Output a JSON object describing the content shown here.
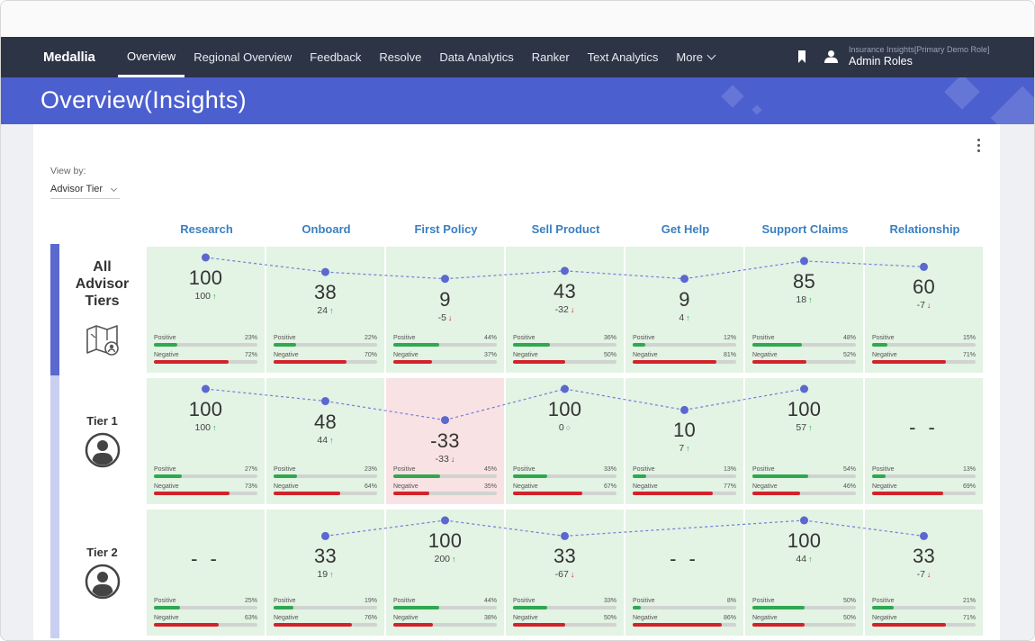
{
  "nav": {
    "logo": "Medallia",
    "tabs": [
      {
        "label": "Overview",
        "active": true
      },
      {
        "label": "Regional Overview"
      },
      {
        "label": "Feedback"
      },
      {
        "label": "Resolve"
      },
      {
        "label": "Data Analytics"
      },
      {
        "label": "Ranker"
      },
      {
        "label": "Text Analytics"
      },
      {
        "label": "More"
      }
    ],
    "role_subtitle": "Insurance Insights[Primary Demo Role]",
    "role_name": "Admin Roles",
    "icons": [
      "bookmark-icon",
      "user-icon",
      "chevron-down-icon"
    ]
  },
  "banner": {
    "title": "Overview(Insights)"
  },
  "view_by": {
    "label": "View by:",
    "value": "Advisor Tier"
  },
  "columns": [
    "Research",
    "Onboard",
    "First Policy",
    "Sell Product",
    "Get Help",
    "Support Claims",
    "Relationship"
  ],
  "metric_labels": {
    "positive": "Positive",
    "negative": "Negative"
  },
  "empty_score": "- -",
  "colors": {
    "accent": "#4c5fcf",
    "nav": "#2c3446",
    "positive": "#2fa84f",
    "negative": "#d2232a",
    "cell_bg": "#e3f3e4",
    "cell_bg_negative": "#f9e2e3",
    "column_header": "#3a7fc1"
  },
  "rows": [
    {
      "label": "All Advisor Tiers",
      "label_lines": [
        "All",
        "Advisor",
        "Tiers"
      ],
      "icon": "map-person-icon",
      "cells": [
        {
          "score": "100",
          "delta": "100",
          "dir": "up",
          "positive": 23,
          "negative": 72
        },
        {
          "score": "38",
          "delta": "24",
          "dir": "up",
          "positive": 22,
          "negative": 70
        },
        {
          "score": "9",
          "delta": "-5",
          "dir": "down",
          "positive": 44,
          "negative": 37
        },
        {
          "score": "43",
          "delta": "-32",
          "dir": "down",
          "positive": 36,
          "negative": 50
        },
        {
          "score": "9",
          "delta": "4",
          "dir": "up",
          "positive": 12,
          "negative": 81
        },
        {
          "score": "85",
          "delta": "18",
          "dir": "up",
          "positive": 48,
          "negative": 52
        },
        {
          "score": "60",
          "delta": "-7",
          "dir": "down",
          "positive": 15,
          "negative": 71
        }
      ]
    },
    {
      "label": "Tier 1",
      "label_lines": [
        "Tier 1"
      ],
      "icon": "avatar-icon",
      "cells": [
        {
          "score": "100",
          "delta": "100",
          "dir": "up",
          "positive": 27,
          "negative": 73
        },
        {
          "score": "48",
          "delta": "44",
          "dir": "up",
          "positive": 23,
          "negative": 64
        },
        {
          "score": "-33",
          "delta": "-33",
          "dir": "down",
          "positive": 45,
          "negative": 35,
          "highlight": true
        },
        {
          "score": "100",
          "delta": "0",
          "dir": "none",
          "positive": 33,
          "negative": 67
        },
        {
          "score": "10",
          "delta": "7",
          "dir": "up",
          "positive": 13,
          "negative": 77
        },
        {
          "score": "100",
          "delta": "57",
          "dir": "up",
          "positive": 54,
          "negative": 46
        },
        {
          "score": null,
          "delta": null,
          "dir": null,
          "positive": 13,
          "negative": 69
        }
      ]
    },
    {
      "label": "Tier 2",
      "label_lines": [
        "Tier 2"
      ],
      "icon": "avatar-icon",
      "cells": [
        {
          "score": null,
          "delta": null,
          "dir": null,
          "positive": 25,
          "negative": 63
        },
        {
          "score": "33",
          "delta": "19",
          "dir": "up",
          "positive": 19,
          "negative": 76
        },
        {
          "score": "100",
          "delta": "200",
          "dir": "up",
          "positive": 44,
          "negative": 38
        },
        {
          "score": "33",
          "delta": "-67",
          "dir": "down",
          "positive": 33,
          "negative": 50
        },
        {
          "score": null,
          "delta": null,
          "dir": null,
          "positive": 8,
          "negative": 86
        },
        {
          "score": "100",
          "delta": "44",
          "dir": "up",
          "positive": 50,
          "negative": 50
        },
        {
          "score": "33",
          "delta": "-7",
          "dir": "down",
          "positive": 21,
          "negative": 71
        }
      ]
    }
  ]
}
